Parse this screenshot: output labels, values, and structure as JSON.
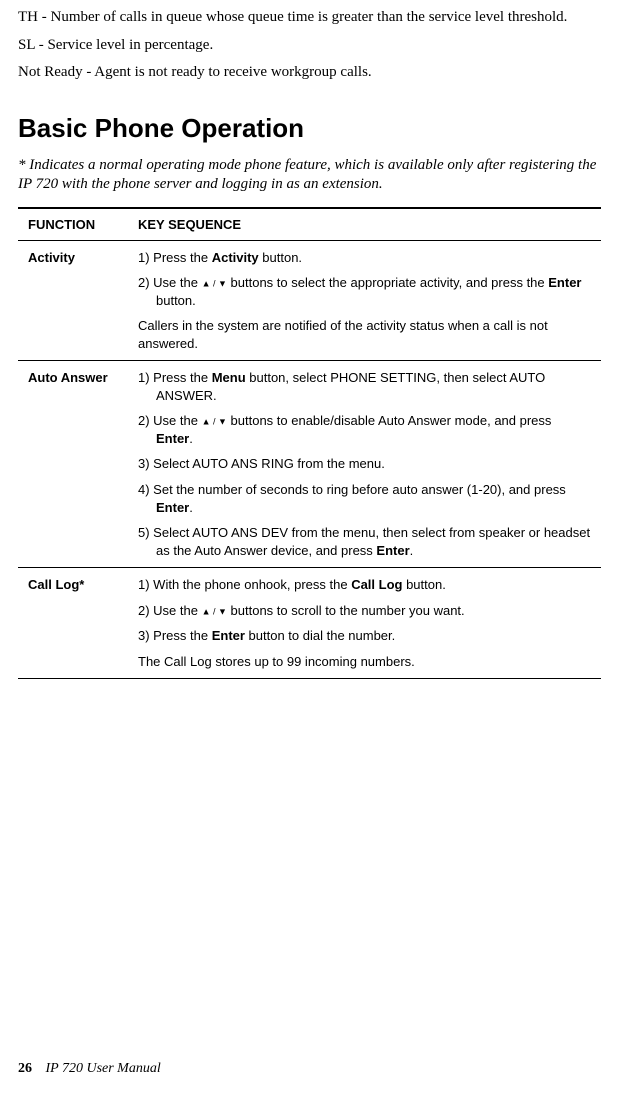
{
  "intro": {
    "th": "TH - Number of calls in queue whose queue time is greater than the service level threshold.",
    "sl": "SL - Service level in percentage.",
    "not_ready": "Not Ready - Agent is not ready to receive workgroup calls."
  },
  "heading": "Basic Phone Operation",
  "note": "* Indicates a normal operating mode phone feature, which is available only after registering the IP 720 with the phone server and logging in as an extension.",
  "table": {
    "headers": {
      "function": "FUNCTION",
      "key_sequence": "KEY SEQUENCE"
    },
    "rows": {
      "activity": {
        "name": "Activity",
        "step1_pre": "1) Press the ",
        "step1_bold": "Activity",
        "step1_post": " button.",
        "step2_pre": "2) Use the ",
        "step2_arrows": "▲ / ▼",
        "step2_mid": " buttons to select the appropriate activity, and press the ",
        "step2_bold": "Enter",
        "step2_post": " button.",
        "note": "Callers in the system are notified of the activity status when a call is not answered."
      },
      "auto_answer": {
        "name": "Auto Answer",
        "step1_pre": "1) Press the ",
        "step1_bold": "Menu",
        "step1_post": " button, select PHONE SETTING, then select AUTO ANSWER.",
        "step2_pre": "2) Use the ",
        "step2_arrows": "▲ / ▼",
        "step2_mid": " buttons to enable/disable Auto Answer mode, and press ",
        "step2_bold": "Enter",
        "step2_post": ".",
        "step3": "3) Select AUTO ANS RING from the menu.",
        "step4_pre": "4) Set the number of seconds to ring before auto answer (1-20), and press ",
        "step4_bold": "Enter",
        "step4_post": ".",
        "step5_pre": "5) Select AUTO ANS DEV from the menu, then select from speaker or headset as the Auto Answer device, and press ",
        "step5_bold": "Enter",
        "step5_post": "."
      },
      "call_log": {
        "name": "Call Log*",
        "step1_pre": "1) With the phone onhook, press the ",
        "step1_bold": "Call Log",
        "step1_post": " button.",
        "step2_pre": "2) Use the ",
        "step2_arrows": "▲ / ▼",
        "step2_post": " buttons to scroll to the number you want.",
        "step3_pre": "3) Press the ",
        "step3_bold": "Enter",
        "step3_post": " button to dial the number.",
        "note": "The Call Log stores up to 99 incoming numbers."
      }
    }
  },
  "footer": {
    "page": "26",
    "title": "IP 720 User Manual"
  }
}
